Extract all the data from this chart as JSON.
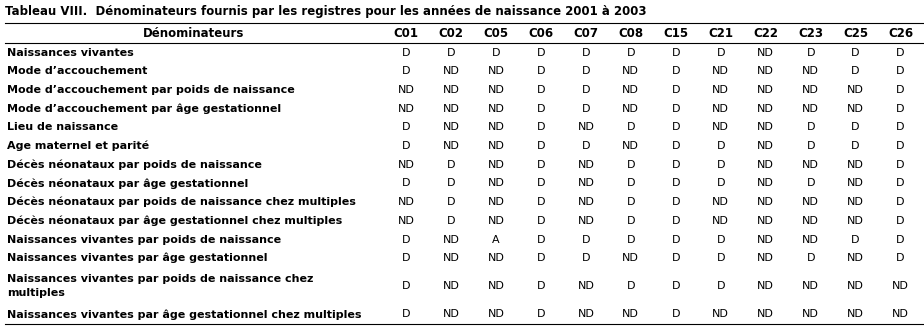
{
  "title": "Tableau VIII.  Dénominateurs fournis par les registres pour les années de naissance 2001 à 2003",
  "col_header": [
    "Dénominateurs",
    "C01",
    "C02",
    "C05",
    "C06",
    "C07",
    "C08",
    "C15",
    "C21",
    "C22",
    "C23",
    "C25",
    "C26"
  ],
  "rows": [
    [
      "Naissances vivantes",
      "D",
      "D",
      "D",
      "D",
      "D",
      "D",
      "D",
      "D",
      "ND",
      "D",
      "D",
      "D"
    ],
    [
      "Mode d’accouchement",
      "D",
      "ND",
      "ND",
      "D",
      "D",
      "ND",
      "D",
      "ND",
      "ND",
      "ND",
      "D",
      "D"
    ],
    [
      "Mode d’accouchement par poids de naissance",
      "ND",
      "ND",
      "ND",
      "D",
      "D",
      "ND",
      "D",
      "ND",
      "ND",
      "ND",
      "ND",
      "D"
    ],
    [
      "Mode d’accouchement par âge gestationnel",
      "ND",
      "ND",
      "ND",
      "D",
      "D",
      "ND",
      "D",
      "ND",
      "ND",
      "ND",
      "ND",
      "D"
    ],
    [
      "Lieu de naissance",
      "D",
      "ND",
      "ND",
      "D",
      "ND",
      "D",
      "D",
      "ND",
      "ND",
      "D",
      "D",
      "D"
    ],
    [
      "Age maternel et parité",
      "D",
      "ND",
      "ND",
      "D",
      "D",
      "ND",
      "D",
      "D",
      "ND",
      "D",
      "D",
      "D"
    ],
    [
      "Décès néonataux par poids de naissance",
      "ND",
      "D",
      "ND",
      "D",
      "ND",
      "D",
      "D",
      "D",
      "ND",
      "ND",
      "ND",
      "D"
    ],
    [
      "Décès néonataux par âge gestationnel",
      "D",
      "D",
      "ND",
      "D",
      "ND",
      "D",
      "D",
      "D",
      "ND",
      "D",
      "ND",
      "D"
    ],
    [
      "Décès néonataux par poids de naissance chez multiples",
      "ND",
      "D",
      "ND",
      "D",
      "ND",
      "D",
      "D",
      "ND",
      "ND",
      "ND",
      "ND",
      "D"
    ],
    [
      "Décès néonataux par âge gestationnel chez multiples",
      "ND",
      "D",
      "ND",
      "D",
      "ND",
      "D",
      "D",
      "ND",
      "ND",
      "ND",
      "ND",
      "D"
    ],
    [
      "Naissances vivantes par poids de naissance",
      "D",
      "ND",
      "A",
      "D",
      "D",
      "D",
      "D",
      "D",
      "ND",
      "ND",
      "D",
      "D"
    ],
    [
      "Naissances vivantes par âge gestationnel",
      "D",
      "ND",
      "ND",
      "D",
      "D",
      "ND",
      "D",
      "D",
      "ND",
      "D",
      "ND",
      "D"
    ],
    [
      "Naissances vivantes par poids de naissance chez\nmultiples",
      "D",
      "ND",
      "ND",
      "D",
      "ND",
      "D",
      "D",
      "D",
      "ND",
      "ND",
      "ND",
      "ND"
    ],
    [
      "Naissances vivantes par âge gestationnel chez multiples",
      "D",
      "ND",
      "ND",
      "D",
      "ND",
      "ND",
      "D",
      "ND",
      "ND",
      "ND",
      "ND",
      "ND"
    ]
  ],
  "bg_color": "#ffffff",
  "title_fontsize": 8.5,
  "header_fontsize": 8.5,
  "row_fontsize": 8.0,
  "fig_width": 9.24,
  "fig_height": 3.33,
  "dpi": 100
}
